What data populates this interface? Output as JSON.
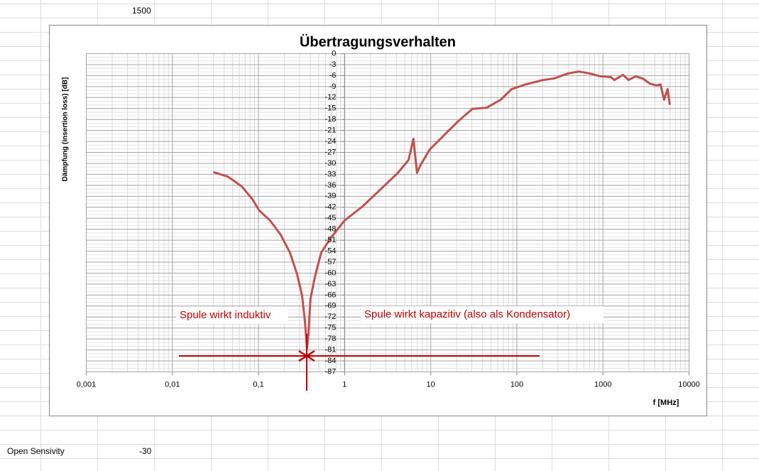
{
  "sheet": {
    "cells": [
      "1500",
      "Open Sensivity",
      "-30"
    ]
  },
  "chart_data": {
    "type": "line",
    "title": "Übertragungsverhalten",
    "x_label": "f [MHz]",
    "y_label": "Dämpfung (insertion loss) [dB]",
    "x_scale": "log",
    "grid": true,
    "minor_grid": true,
    "y_axis_at": 1,
    "xlim": [
      0.001,
      10000
    ],
    "xticks": [
      {
        "value": 0.001,
        "label": "0,001"
      },
      {
        "value": 0.01,
        "label": "0,01"
      },
      {
        "value": 0.1,
        "label": "0,1"
      },
      1,
      10,
      100,
      1000,
      10000
    ],
    "ylim": [
      -87,
      0
    ],
    "yticks": [
      0,
      -3,
      -6,
      -9,
      -12,
      -15,
      -18,
      -21,
      -24,
      -27,
      -30,
      -33,
      -36,
      -39,
      -42,
      -45,
      -48,
      -51,
      -54,
      -57,
      -60,
      -63,
      -66,
      -69,
      -72,
      -75,
      -78,
      -81,
      -84,
      -87
    ],
    "annotations": [
      "Spule wirkt induktiv",
      "Spule wirkt kapazitiv (also als Kondensator)"
    ],
    "series": [
      {
        "name": "Übertragungsverhalten",
        "color": "#c0504d",
        "x": [
          0.03,
          0.044,
          0.064,
          0.085,
          0.102,
          0.136,
          0.181,
          0.232,
          0.28,
          0.32,
          0.345,
          0.366,
          0.38,
          0.402,
          0.45,
          0.535,
          0.684,
          1,
          1.61,
          2.84,
          4.15,
          5.52,
          6.3,
          6.93,
          7.6,
          9.75,
          14.3,
          20.8,
          30.5,
          44.5,
          65,
          87,
          127,
          203,
          270,
          395,
          525,
          698,
          929,
          1236,
          1358,
          1706,
          1986,
          2400,
          2900,
          3507,
          4236,
          4660,
          5127,
          5634,
          5970
        ],
        "values": [
          -32.4,
          -33.6,
          -36.3,
          -39.8,
          -42.9,
          -45.6,
          -49.5,
          -54.4,
          -60.2,
          -66,
          -72.8,
          -80.6,
          -76.7,
          -67,
          -61.2,
          -54.4,
          -50.5,
          -45.6,
          -41.8,
          -36.3,
          -32.6,
          -29.1,
          -23.3,
          -32.6,
          -30.5,
          -26.2,
          -22.3,
          -18.5,
          -15.1,
          -14.8,
          -12.6,
          -9.7,
          -8.4,
          -7.2,
          -6.8,
          -5.4,
          -4.9,
          -5.4,
          -6.2,
          -6.4,
          -7.2,
          -5.8,
          -7.2,
          -6.2,
          -6.8,
          -8.2,
          -8.7,
          -8.4,
          -12.6,
          -9.7,
          -14
        ]
      }
    ]
  }
}
